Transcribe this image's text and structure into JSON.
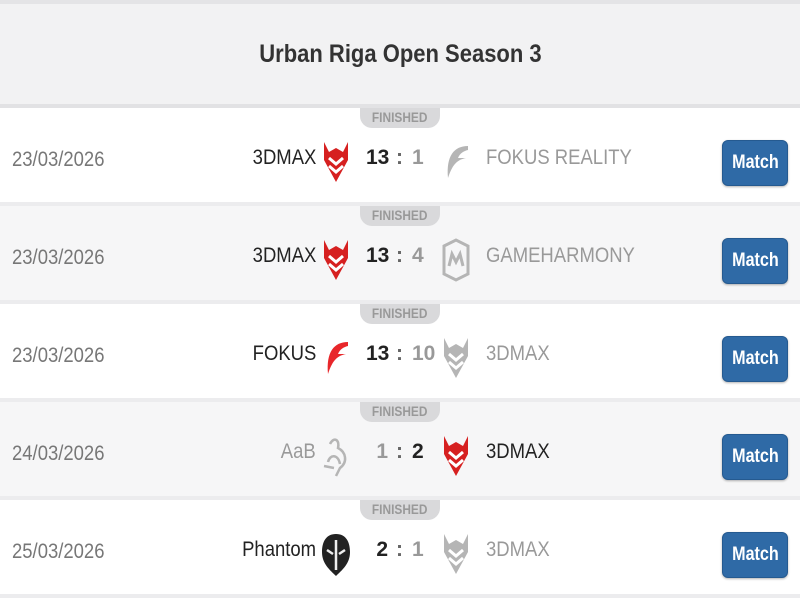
{
  "title": "Urban Riga Open Season 3",
  "colors": {
    "accent": "#2f6aa6",
    "winner_logo": "#d62020",
    "loser_logo": "#b5b5b5"
  },
  "matches": [
    {
      "status": "FINISHED",
      "date": "23/03/2026",
      "home": "3DMAX",
      "home_logo": "3dmax-logo",
      "home_score": "13",
      "away": "FOKUS REALITY",
      "away_logo": "fokus-logo",
      "away_score": "1",
      "winner": "home",
      "button": "Match"
    },
    {
      "status": "FINISHED",
      "date": "23/03/2026",
      "home": "3DMAX",
      "home_logo": "3dmax-logo",
      "home_score": "13",
      "away": "GAMEHARMONY",
      "away_logo": "gameharmony-logo",
      "away_score": "4",
      "winner": "home",
      "button": "Match"
    },
    {
      "status": "FINISHED",
      "date": "23/03/2026",
      "home": "FOKUS",
      "home_logo": "fokus-logo",
      "home_score": "13",
      "away": "3DMAX",
      "away_logo": "3dmax-logo",
      "away_score": "10",
      "winner": "home",
      "button": "Match"
    },
    {
      "status": "FINISHED",
      "date": "24/03/2026",
      "home": "AaB",
      "home_logo": "aab-logo",
      "home_score": "1",
      "away": "3DMAX",
      "away_logo": "3dmax-logo",
      "away_score": "2",
      "winner": "away",
      "button": "Match"
    },
    {
      "status": "FINISHED",
      "date": "25/03/2026",
      "home": "Phantom",
      "home_logo": "phantom-logo",
      "home_score": "2",
      "away": "3DMAX",
      "away_logo": "3dmax-logo",
      "away_score": "1",
      "winner": "home",
      "button": "Match"
    }
  ]
}
